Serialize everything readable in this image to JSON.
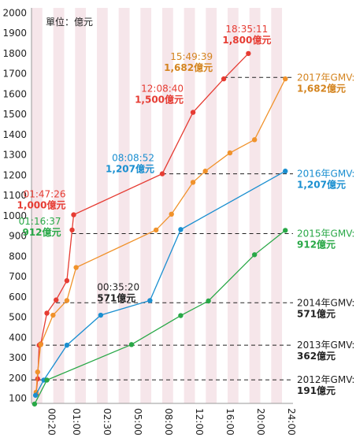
{
  "chart_data": {
    "type": "line",
    "unit_label": "單位：億元",
    "y_ticks": [
      100,
      200,
      300,
      400,
      500,
      600,
      700,
      800,
      900,
      1000,
      1100,
      1200,
      1300,
      1400,
      1500,
      1600,
      1700,
      1800,
      1900,
      2000
    ],
    "ylim": [
      75,
      2025
    ],
    "x_ticks": [
      "00:20",
      "01:00",
      "02:30",
      "05:00",
      "08:00",
      "12:00",
      "16:00",
      "20:00",
      "24:00"
    ],
    "x_tick_positions": [
      0.2,
      1.0,
      2.0,
      3.0,
      4.0,
      5.0,
      6.0,
      7.0,
      8.0
    ],
    "xlim": [
      -0.25,
      8.25
    ],
    "grid": "alternating vertical bands",
    "series": [
      {
        "color": "#e63c33",
        "points": [
          [
            -0.1,
            120
          ],
          [
            -0.05,
            196
          ],
          [
            0.0,
            362
          ],
          [
            0.05,
            368
          ],
          [
            0.25,
            520
          ],
          [
            0.55,
            585
          ],
          [
            0.9,
            680
          ],
          [
            1.07,
            930
          ],
          [
            1.12,
            1005
          ],
          [
            4.0,
            1207
          ],
          [
            5.0,
            1510
          ],
          [
            6.0,
            1675
          ],
          [
            6.8,
            1800
          ]
        ]
      },
      {
        "color": "#f0922b",
        "points": [
          [
            -0.1,
            130
          ],
          [
            -0.05,
            230
          ],
          [
            0.05,
            365
          ],
          [
            0.45,
            510
          ],
          [
            0.9,
            582
          ],
          [
            1.2,
            745
          ],
          [
            3.8,
            930
          ],
          [
            4.3,
            1008
          ],
          [
            5.0,
            1165
          ],
          [
            5.4,
            1220
          ],
          [
            6.2,
            1310
          ],
          [
            7.0,
            1375
          ],
          [
            8.0,
            1675
          ]
        ]
      },
      {
        "color": "#1a8fd0",
        "points": [
          [
            -0.12,
            115
          ],
          [
            0.15,
            190
          ],
          [
            0.9,
            362
          ],
          [
            2.0,
            510
          ],
          [
            3.6,
            582
          ],
          [
            4.6,
            932
          ],
          [
            8.0,
            1220
          ]
        ]
      },
      {
        "color": "#29a847",
        "points": [
          [
            -0.15,
            72
          ],
          [
            0.25,
            190
          ],
          [
            3.0,
            365
          ],
          [
            4.6,
            508
          ],
          [
            5.5,
            580
          ],
          [
            7.0,
            808
          ],
          [
            8.0,
            928
          ]
        ]
      }
    ],
    "reference_lines": [
      {
        "value": 1682,
        "from_x": 6.0,
        "label": "2017年GMV:",
        "amount": "1,682億元",
        "color": "#d4841f"
      },
      {
        "value": 1207,
        "from_x": 4.0,
        "label": "2016年GMV:",
        "amount": "1,207億元",
        "color": "#1a8fd0"
      },
      {
        "value": 912,
        "from_x": 1.07,
        "label": "2015年GMV:",
        "amount": "912億元",
        "color": "#29a847"
      },
      {
        "value": 571,
        "from_x": 0.55,
        "label": "2014年GMV:",
        "amount": "571億元",
        "color": "#222222"
      },
      {
        "value": 362,
        "from_x": -0.25,
        "label": "2013年GMV:",
        "amount": "362億元",
        "color": "#222222"
      },
      {
        "value": 191,
        "from_x": -0.25,
        "label": "2012年GMV:",
        "amount": "191億元",
        "color": "#222222"
      }
    ],
    "annotations": [
      {
        "time": "18:35:11",
        "amount": "1,800億元",
        "color": "#e63c33",
        "x": 6.8,
        "y": 1800
      },
      {
        "time": "15:49:39",
        "amount": "1,682億元",
        "color": "#d4841f",
        "x": 6.0,
        "y": 1675
      },
      {
        "time": "12:08:40",
        "amount": "1,500億元",
        "color": "#e63c33",
        "x": 5.0,
        "y": 1510
      },
      {
        "time": "08:08:52",
        "amount": "1,207億元",
        "color": "#1a8fd0",
        "x": 4.0,
        "y": 1207
      },
      {
        "time": "01:47:26",
        "amount": "1,000億元",
        "color": "#e63c33",
        "x": 1.12,
        "y": 1005
      },
      {
        "time": "01:16:37",
        "amount": "912億元",
        "color": "#29a847",
        "x": 1.07,
        "y": 930
      },
      {
        "time": "00:35:20",
        "amount": "571億元",
        "color": "#222222",
        "x": 0.55,
        "y": 585
      }
    ]
  }
}
